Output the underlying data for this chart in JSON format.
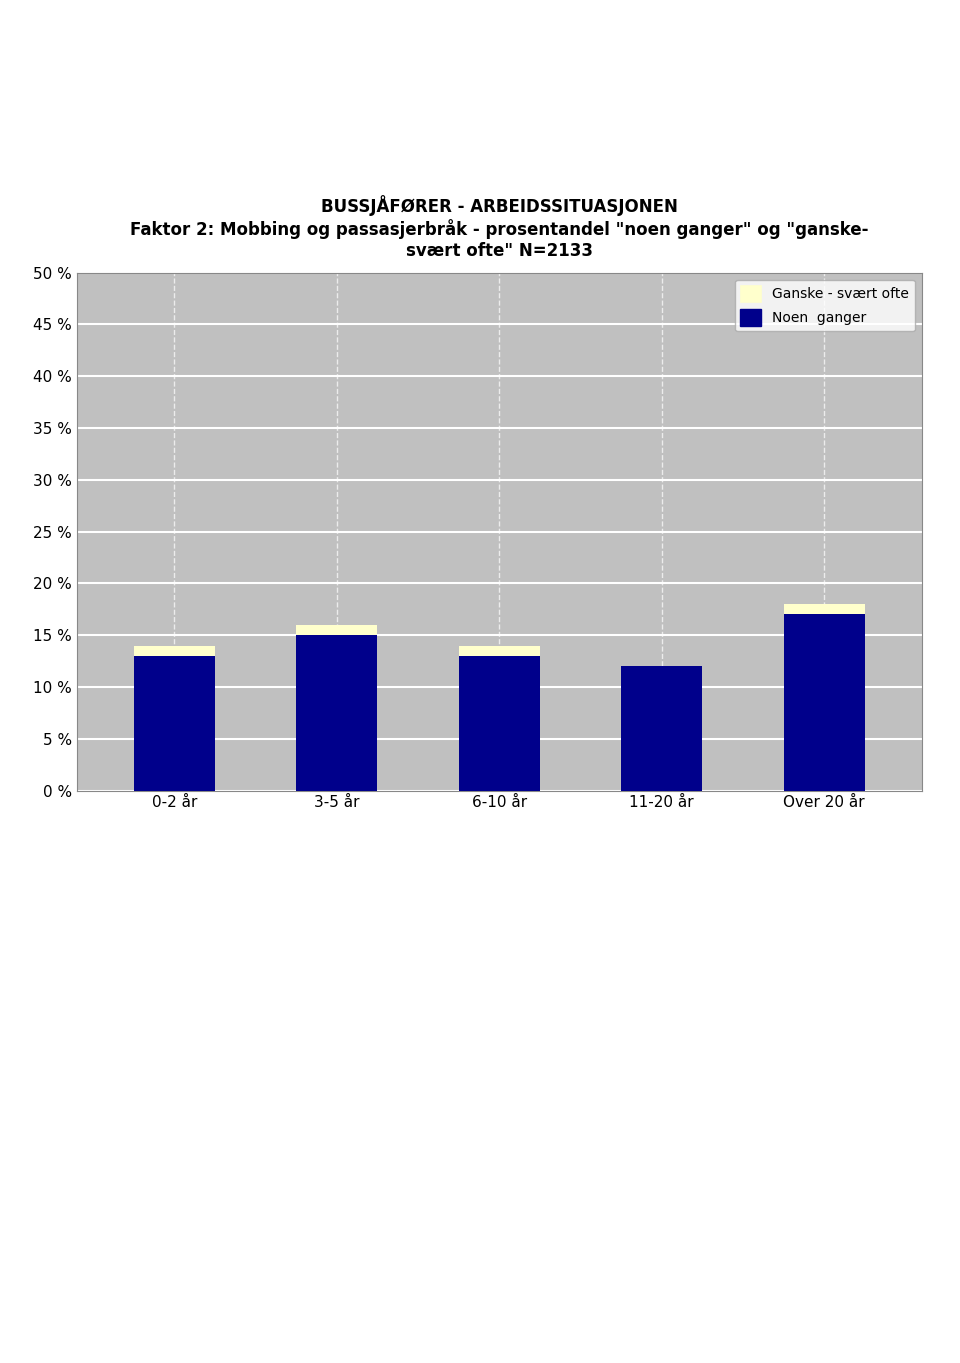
{
  "title_main": "BUSSJÅFØRER - ARBEIDSSITUASJONEN",
  "title_sub": "Faktor 2: Mobbing og passasjerbråk - prosentandel \"noen ganger\" og \"ganske-\nsvært ofte\" N=2133",
  "categories": [
    "0-2 år",
    "3-5 år",
    "6-10 år",
    "11-20 år",
    "Over 20 år"
  ],
  "noen_ganger": [
    13,
    15,
    13,
    12,
    17
  ],
  "ganske_svart_ofte": [
    1,
    1,
    1,
    0,
    1
  ],
  "bar_color_noen": "#00008B",
  "bar_color_ganske": "#FFFFCC",
  "background_color": "#C0C0C0",
  "plot_bg_color": "#C0C0C0",
  "legend_ganske": "Ganske - svært ofte",
  "legend_noen": "Noen  ganger",
  "ylim": [
    0,
    50
  ],
  "yticks": [
    0,
    5,
    10,
    15,
    20,
    25,
    30,
    35,
    40,
    45,
    50
  ],
  "ylabel_format": "{} %",
  "grid_color": "#FFFFFF",
  "bar_width": 0.5
}
